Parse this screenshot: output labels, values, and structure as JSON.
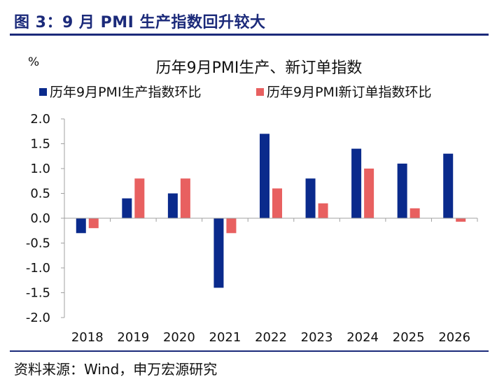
{
  "figure_title": "图 3：9 月 PMI 生产指数回升较大",
  "source": "资料来源：Wind，申万宏源研究",
  "colors": {
    "series1": "#0a2a8c",
    "series2": "#e86060",
    "accent": "#1b2a7a"
  },
  "chart_data": {
    "type": "bar",
    "title": "历年9月PMI生产、新订单指数",
    "ylabel": "%",
    "xlabel": "",
    "categories": [
      "2018",
      "2019",
      "2020",
      "2021",
      "2022",
      "2023",
      "2024",
      "2025",
      "2026"
    ],
    "series": [
      {
        "name": "历年9月PMI生产指数环比",
        "values": [
          -0.3,
          0.4,
          0.5,
          -1.4,
          1.7,
          0.8,
          1.4,
          1.1,
          1.3
        ]
      },
      {
        "name": "历年9月PMI新订单指数环比",
        "values": [
          -0.2,
          0.8,
          0.8,
          -0.3,
          0.6,
          0.3,
          1.0,
          0.2,
          -0.07
        ]
      }
    ],
    "ylim": [
      -2.0,
      2.0
    ],
    "yticks": [
      "2.0",
      "1.5",
      "1.0",
      "0.5",
      "0.0",
      "-0.5",
      "-1.0",
      "-1.5",
      "-2.0"
    ],
    "grid": false,
    "legend": "top"
  }
}
